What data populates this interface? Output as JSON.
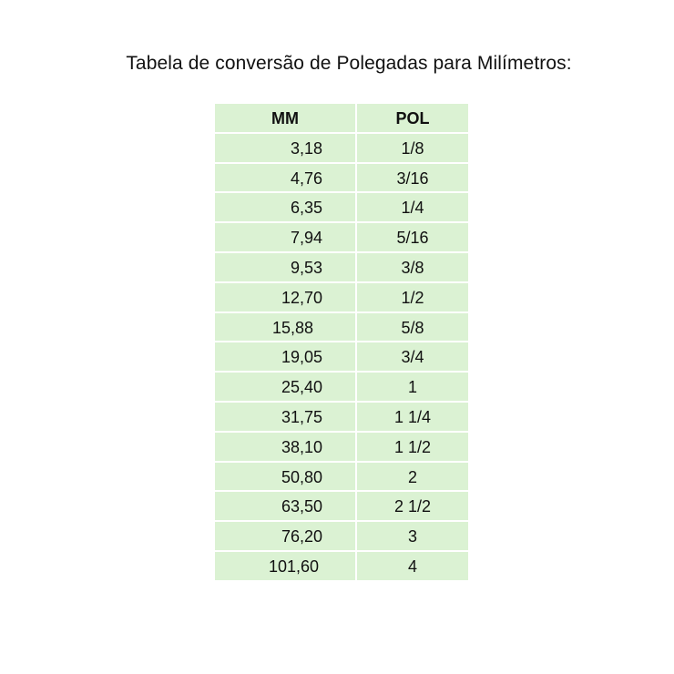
{
  "title": "Tabela de conversão de Polegadas para Milímetros:",
  "table": {
    "headers": {
      "mm": "MM",
      "pol": "POL"
    },
    "rows": [
      {
        "mm": "3,18",
        "pol": "1/8"
      },
      {
        "mm": "4,76",
        "pol": "3/16"
      },
      {
        "mm": "6,35",
        "pol": "1/4"
      },
      {
        "mm": "7,94",
        "pol": "5/16"
      },
      {
        "mm": "9,53",
        "pol": "3/8"
      },
      {
        "mm": "12,70",
        "pol": "1/2"
      },
      {
        "mm": "15,88",
        "pol": "5/8"
      },
      {
        "mm": "19,05",
        "pol": "3/4"
      },
      {
        "mm": "25,40",
        "pol": "1"
      },
      {
        "mm": "31,75",
        "pol": "1 1/4"
      },
      {
        "mm": "38,10",
        "pol": "1 1/2"
      },
      {
        "mm": "50,80",
        "pol": "2"
      },
      {
        "mm": "63,50",
        "pol": "2 1/2"
      },
      {
        "mm": "76,20",
        "pol": "3"
      },
      {
        "mm": "101,60",
        "pol": "4"
      }
    ]
  },
  "colors": {
    "cell_background": "#dbf2d3",
    "text": "#111111"
  }
}
